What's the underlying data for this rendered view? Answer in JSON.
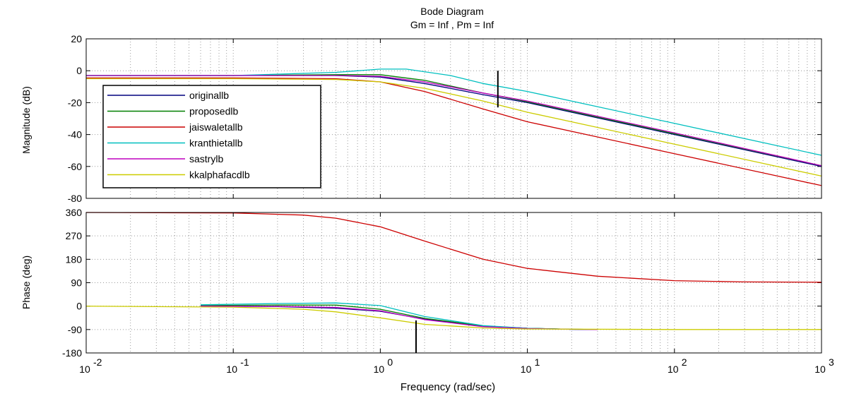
{
  "chart_data": {
    "type": "line",
    "title": "Bode Diagram",
    "subtitle": "Gm = Inf ,  Pm = Inf",
    "xlabel": "Frequency  (rad/sec)",
    "x_scale": "log",
    "xlim": [
      0.01,
      1000
    ],
    "x_ticks": [
      {
        "base": "10",
        "exp": "-2"
      },
      {
        "base": "10",
        "exp": "-1"
      },
      {
        "base": "10",
        "exp": "0"
      },
      {
        "base": "10",
        "exp": "1"
      },
      {
        "base": "10",
        "exp": "2"
      },
      {
        "base": "10",
        "exp": "3"
      }
    ],
    "grid": true,
    "legend_position": "left",
    "magnitude": {
      "ylabel": "Magnitude (dB)",
      "ylim": [
        -80,
        20
      ],
      "y_ticks": [
        "20",
        "0",
        "-20",
        "-40",
        "-60",
        "-80"
      ],
      "marker_frequency": 6.3,
      "marker_range": [
        -23,
        0
      ],
      "series": [
        {
          "name": "originallb",
          "color": "#00007f",
          "points": [
            [
              0.01,
              -3
            ],
            [
              0.1,
              -3
            ],
            [
              0.5,
              -3
            ],
            [
              1,
              -4
            ],
            [
              2,
              -8
            ],
            [
              5,
              -15
            ],
            [
              10,
              -20
            ],
            [
              100,
              -40
            ],
            [
              1000,
              -60
            ]
          ]
        },
        {
          "name": "proposedlb",
          "color": "#007f00",
          "points": [
            [
              0.01,
              -3
            ],
            [
              0.1,
              -3
            ],
            [
              0.5,
              -2.5
            ],
            [
              1,
              -2.5
            ],
            [
              2,
              -6
            ],
            [
              5,
              -14
            ],
            [
              10,
              -19.5
            ],
            [
              100,
              -39.5
            ],
            [
              1000,
              -59.5
            ]
          ]
        },
        {
          "name": "jaiswaletallb",
          "color": "#cc0000",
          "points": [
            [
              0.01,
              -4.5
            ],
            [
              0.1,
              -4.5
            ],
            [
              0.5,
              -5
            ],
            [
              1,
              -7
            ],
            [
              2,
              -13
            ],
            [
              5,
              -24
            ],
            [
              10,
              -32
            ],
            [
              100,
              -52
            ],
            [
              1000,
              -72
            ]
          ]
        },
        {
          "name": "kranthietallb",
          "color": "#00bfbf",
          "points": [
            [
              0.01,
              -3
            ],
            [
              0.1,
              -3
            ],
            [
              0.5,
              -1
            ],
            [
              1,
              1
            ],
            [
              1.5,
              1
            ],
            [
              3,
              -3
            ],
            [
              5,
              -8
            ],
            [
              10,
              -13
            ],
            [
              100,
              -33
            ],
            [
              1000,
              -53
            ]
          ]
        },
        {
          "name": "sastrylb",
          "color": "#bf00bf",
          "points": [
            [
              0.01,
              -3
            ],
            [
              0.1,
              -3
            ],
            [
              0.5,
              -3
            ],
            [
              1,
              -3.5
            ],
            [
              2,
              -7
            ],
            [
              5,
              -14
            ],
            [
              10,
              -19
            ],
            [
              100,
              -39
            ],
            [
              1000,
              -59.5
            ]
          ]
        },
        {
          "name": "kkalphafacdlb",
          "color": "#cccc00",
          "points": [
            [
              0.01,
              -5
            ],
            [
              0.1,
              -5
            ],
            [
              0.5,
              -5.5
            ],
            [
              1,
              -7
            ],
            [
              2,
              -11
            ],
            [
              5,
              -19
            ],
            [
              10,
              -26
            ],
            [
              100,
              -46
            ],
            [
              1000,
              -66
            ]
          ]
        }
      ]
    },
    "phase": {
      "ylabel": "Phase (deg)",
      "ylim": [
        -180,
        360
      ],
      "y_ticks": [
        "360",
        "270",
        "180",
        "90",
        "0",
        "-90",
        "-180"
      ],
      "marker_frequency": 1.75,
      "marker_range": [
        -180,
        -55
      ],
      "series": [
        {
          "name": "originallb",
          "color": "#00007f",
          "points": [
            [
              0.06,
              0
            ],
            [
              0.2,
              -2
            ],
            [
              0.5,
              -8
            ],
            [
              1,
              -20
            ],
            [
              2,
              -50
            ],
            [
              5,
              -77
            ],
            [
              10,
              -85
            ],
            [
              20,
              -89
            ],
            [
              30,
              -90
            ]
          ]
        },
        {
          "name": "proposedlb",
          "color": "#007f00",
          "points": [
            [
              0.06,
              2
            ],
            [
              0.2,
              4
            ],
            [
              0.5,
              4
            ],
            [
              1,
              -12
            ],
            [
              2,
              -47
            ],
            [
              5,
              -76
            ],
            [
              10,
              -85
            ],
            [
              20,
              -89
            ],
            [
              30,
              -90
            ]
          ]
        },
        {
          "name": "jaiswaletallb",
          "color": "#cc0000",
          "points": [
            [
              0.01,
              360
            ],
            [
              0.1,
              358
            ],
            [
              0.3,
              350
            ],
            [
              0.5,
              338
            ],
            [
              1,
              305
            ],
            [
              2,
              250
            ],
            [
              5,
              180
            ],
            [
              10,
              145
            ],
            [
              30,
              115
            ],
            [
              100,
              98
            ],
            [
              300,
              93
            ],
            [
              1000,
              92
            ]
          ]
        },
        {
          "name": "kranthietallb",
          "color": "#00bfbf",
          "points": [
            [
              0.06,
              5
            ],
            [
              0.2,
              10
            ],
            [
              0.5,
              12
            ],
            [
              1,
              2
            ],
            [
              2,
              -40
            ],
            [
              5,
              -75
            ],
            [
              10,
              -85
            ],
            [
              20,
              -89
            ],
            [
              30,
              -90
            ]
          ]
        },
        {
          "name": "sastrylb",
          "color": "#bf00bf",
          "points": [
            [
              0.06,
              0
            ],
            [
              0.2,
              -1
            ],
            [
              0.5,
              -5
            ],
            [
              1,
              -18
            ],
            [
              2,
              -52
            ],
            [
              5,
              -79
            ],
            [
              10,
              -86
            ],
            [
              20,
              -89
            ],
            [
              30,
              -90
            ]
          ]
        },
        {
          "name": "kkalphafacdlb",
          "color": "#cccc00",
          "points": [
            [
              0.01,
              0
            ],
            [
              0.1,
              -4
            ],
            [
              0.3,
              -12
            ],
            [
              0.5,
              -22
            ],
            [
              1,
              -45
            ],
            [
              2,
              -70
            ],
            [
              5,
              -84
            ],
            [
              10,
              -88
            ],
            [
              100,
              -90
            ],
            [
              1000,
              -90
            ]
          ]
        }
      ]
    }
  }
}
